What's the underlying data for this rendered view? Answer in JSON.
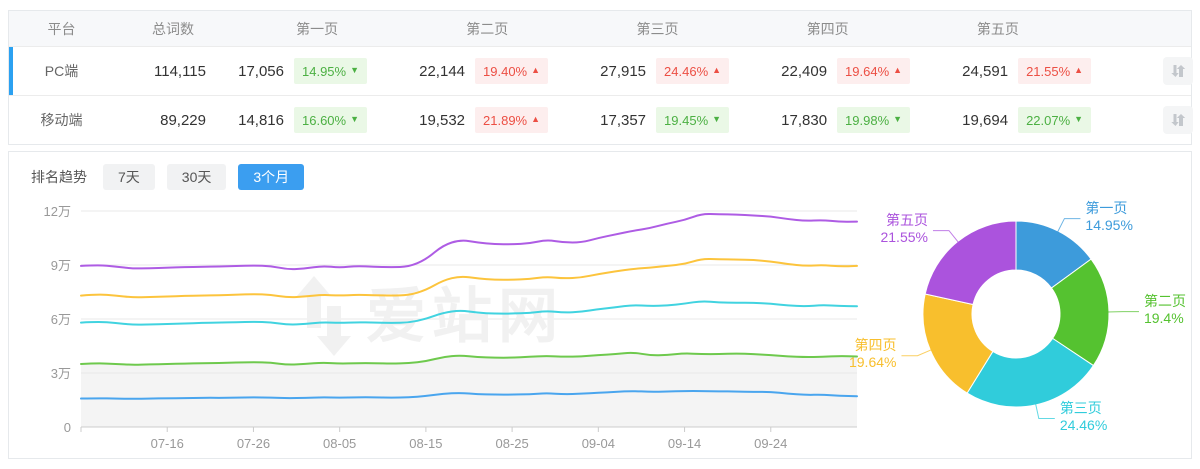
{
  "table": {
    "headers": {
      "platform": "平台",
      "total": "总词数",
      "pages": [
        "第一页",
        "第二页",
        "第三页",
        "第四页",
        "第五页"
      ]
    },
    "rows": [
      {
        "platform": "PC端",
        "total": "114,115",
        "active": true,
        "chart_active": true,
        "pages": [
          {
            "count": "17,056",
            "pct": "14.95%",
            "arrow": "▼",
            "tone": "green"
          },
          {
            "count": "22,144",
            "pct": "19.40%",
            "arrow": "▲",
            "tone": "red"
          },
          {
            "count": "27,915",
            "pct": "24.46%",
            "arrow": "▲",
            "tone": "red"
          },
          {
            "count": "22,409",
            "pct": "19.64%",
            "arrow": "▲",
            "tone": "red"
          },
          {
            "count": "24,591",
            "pct": "21.55%",
            "arrow": "▲",
            "tone": "red"
          }
        ]
      },
      {
        "platform": "移动端",
        "total": "89,229",
        "active": false,
        "chart_active": false,
        "pages": [
          {
            "count": "14,816",
            "pct": "16.60%",
            "arrow": "▼",
            "tone": "green"
          },
          {
            "count": "19,532",
            "pct": "21.89%",
            "arrow": "▲",
            "tone": "red"
          },
          {
            "count": "17,357",
            "pct": "19.45%",
            "arrow": "▼",
            "tone": "green"
          },
          {
            "count": "17,830",
            "pct": "19.98%",
            "arrow": "▼",
            "tone": "green"
          },
          {
            "count": "19,694",
            "pct": "22.07%",
            "arrow": "▼",
            "tone": "green"
          }
        ]
      }
    ]
  },
  "trend": {
    "label": "排名趋势",
    "ranges": [
      {
        "label": "7天",
        "active": false
      },
      {
        "label": "30天",
        "active": false
      },
      {
        "label": "3个月",
        "active": true
      }
    ]
  },
  "watermark": "爱站网",
  "colors": {
    "accent_blue": "#3598e8",
    "badge_green": "#4cb043",
    "badge_green_bg": "#eaf8e6",
    "badge_red": "#ec4f44",
    "badge_red_bg": "#fdeeee"
  },
  "chart_data": [
    {
      "type": "line",
      "title": "排名趋势",
      "unit": "万 (x10,000 keywords, cumulative stacked)",
      "y_ticks": [
        "0",
        "3万",
        "6万",
        "9万",
        "12万"
      ],
      "ylim": [
        0,
        12
      ],
      "grid": true,
      "x_ticks": [
        "07-16",
        "07-26",
        "08-05",
        "08-15",
        "08-25",
        "09-04",
        "09-14",
        "09-24"
      ],
      "x_tick_indices": [
        5,
        10,
        15,
        20,
        25,
        30,
        35,
        40
      ],
      "n_points": 46,
      "series": [
        {
          "name": "第一页",
          "color": "#49a5ee",
          "area": false,
          "values": [
            1.58,
            1.6,
            1.58,
            1.57,
            1.58,
            1.6,
            1.6,
            1.62,
            1.62,
            1.63,
            1.65,
            1.63,
            1.6,
            1.62,
            1.65,
            1.63,
            1.65,
            1.65,
            1.63,
            1.65,
            1.72,
            1.85,
            1.9,
            1.82,
            1.8,
            1.8,
            1.82,
            1.88,
            1.82,
            1.85,
            1.9,
            1.95,
            2.0,
            1.95,
            1.97,
            2.0,
            2.0,
            1.98,
            1.97,
            1.95,
            1.95,
            1.85,
            1.78,
            1.8,
            1.73,
            1.71
          ]
        },
        {
          "name": "第二页",
          "color": "#6ec94d",
          "area": true,
          "values": [
            3.5,
            3.55,
            3.5,
            3.45,
            3.48,
            3.5,
            3.52,
            3.55,
            3.55,
            3.58,
            3.6,
            3.58,
            3.45,
            3.5,
            3.58,
            3.52,
            3.55,
            3.55,
            3.52,
            3.55,
            3.65,
            3.9,
            3.98,
            3.88,
            3.85,
            3.85,
            3.9,
            3.95,
            3.9,
            3.92,
            4.0,
            4.05,
            4.15,
            3.98,
            4.0,
            4.1,
            4.05,
            4.05,
            4.08,
            4.05,
            4.0,
            3.92,
            3.88,
            3.9,
            3.95,
            3.92
          ]
        },
        {
          "name": "第三页",
          "color": "#41d3e0",
          "area": false,
          "values": [
            5.8,
            5.85,
            5.78,
            5.68,
            5.7,
            5.72,
            5.75,
            5.78,
            5.8,
            5.82,
            5.85,
            5.82,
            5.68,
            5.72,
            5.82,
            5.78,
            5.82,
            5.8,
            5.78,
            5.8,
            6.0,
            6.35,
            6.48,
            6.35,
            6.3,
            6.3,
            6.33,
            6.45,
            6.35,
            6.4,
            6.55,
            6.65,
            6.78,
            6.72,
            6.75,
            6.85,
            7.0,
            6.92,
            6.9,
            6.9,
            6.85,
            6.75,
            6.7,
            6.78,
            6.72,
            6.71
          ]
        },
        {
          "name": "第四页",
          "color": "#fcc43d",
          "area": false,
          "values": [
            7.3,
            7.38,
            7.3,
            7.2,
            7.22,
            7.25,
            7.28,
            7.3,
            7.32,
            7.35,
            7.38,
            7.35,
            7.2,
            7.25,
            7.35,
            7.3,
            7.35,
            7.32,
            7.3,
            7.32,
            7.6,
            8.15,
            8.38,
            8.25,
            8.18,
            8.18,
            8.22,
            8.35,
            8.25,
            8.3,
            8.5,
            8.65,
            8.78,
            8.85,
            8.95,
            9.05,
            9.35,
            9.32,
            9.3,
            9.28,
            9.2,
            9.05,
            8.95,
            9.0,
            8.92,
            8.95
          ]
        },
        {
          "name": "第五页",
          "color": "#ae5ce4",
          "area": false,
          "values": [
            8.95,
            9.0,
            8.92,
            8.8,
            8.82,
            8.85,
            8.88,
            8.9,
            8.92,
            8.95,
            8.97,
            8.95,
            8.75,
            8.8,
            8.95,
            8.85,
            8.95,
            8.9,
            8.88,
            8.9,
            9.3,
            10.1,
            10.4,
            10.25,
            10.15,
            10.15,
            10.2,
            10.4,
            10.25,
            10.25,
            10.5,
            10.7,
            10.9,
            11.05,
            11.3,
            11.5,
            11.85,
            11.82,
            11.8,
            11.75,
            11.7,
            11.55,
            11.45,
            11.5,
            11.4,
            11.41
          ]
        }
      ]
    },
    {
      "type": "pie",
      "donut": true,
      "start": "top",
      "direction": "clockwise",
      "slices": [
        {
          "label": "第一页",
          "pct": 14.95,
          "display": "14.95%",
          "color": "#3d9bdb"
        },
        {
          "label": "第二页",
          "pct": 19.4,
          "display": "19.4%",
          "color": "#55c230"
        },
        {
          "label": "第三页",
          "pct": 24.46,
          "display": "24.46%",
          "color": "#30ccdb"
        },
        {
          "label": "第四页",
          "pct": 19.64,
          "display": "19.64%",
          "color": "#f8bf2d"
        },
        {
          "label": "第五页",
          "pct": 21.55,
          "display": "21.55%",
          "color": "#ab53dd"
        }
      ]
    }
  ]
}
